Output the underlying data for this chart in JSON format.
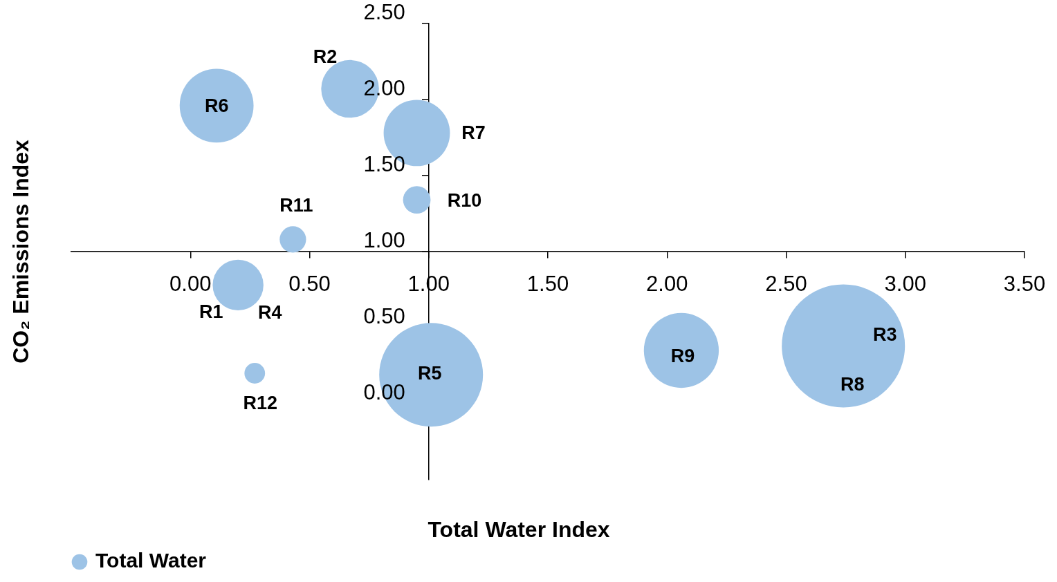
{
  "chart_data": {
    "type": "bubble",
    "xlabel": "Total Water Index",
    "ylabel": "CO₂ Emissions Index",
    "x": [
      0.11,
      0.67,
      0.95,
      0.95,
      0.43,
      0.2,
      0.27,
      1.01,
      2.06,
      2.74
    ],
    "series": [
      {
        "name": "Total Water",
        "color": "#9dc3e6",
        "values": [
          1.96,
          2.07,
          1.78,
          1.34,
          1.08,
          0.78,
          0.2,
          0.19,
          0.35,
          0.38
        ],
        "sizes": [
          0.36,
          0.22,
          0.29,
          0.05,
          0.046,
          0.17,
          0.028,
          0.71,
          0.37,
          1
        ]
      }
    ],
    "xlim": [
      -0.5,
      3.5
    ],
    "ylim": [
      -0.5,
      2.5
    ],
    "xticks": [
      {
        "value": 0,
        "label": "0.00"
      },
      {
        "value": 0.5,
        "label": "0.50"
      },
      {
        "value": 1,
        "label": "1.00"
      },
      {
        "value": 1.5,
        "label": "1.50"
      },
      {
        "value": 2,
        "label": "2.00"
      },
      {
        "value": 2.5,
        "label": "2.50"
      },
      {
        "value": 3,
        "label": "3.00"
      },
      {
        "value": 3.5,
        "label": "3.50"
      }
    ],
    "yticks": [
      {
        "value": 0,
        "label": "0.00"
      },
      {
        "value": 0.5,
        "label": "0.50"
      },
      {
        "value": 1,
        "label": "1.00"
      },
      {
        "value": 1.5,
        "label": "1.50"
      },
      {
        "value": 2,
        "label": "2.00"
      },
      {
        "value": 2.5,
        "label": "2.50"
      }
    ],
    "annotations": [
      {
        "text": "R6",
        "x": 0.11,
        "y": 1.96
      },
      {
        "text": "R2",
        "x": 0.67,
        "y": 2.07
      },
      {
        "text": "R7",
        "x": 0.95,
        "y": 1.78
      },
      {
        "text": "R10",
        "x": 0.95,
        "y": 1.34
      },
      {
        "text": "R11",
        "x": 0.43,
        "y": 1.08
      },
      {
        "text": "R1",
        "x": 0.2,
        "y": 0.78
      },
      {
        "text": "R4",
        "x": 0.2,
        "y": 0.78
      },
      {
        "text": "R12",
        "x": 0.27,
        "y": 0.2
      },
      {
        "text": "R5",
        "x": 1.01,
        "y": 0.19
      },
      {
        "text": "R9",
        "x": 2.06,
        "y": 0.35
      },
      {
        "text": "R3",
        "x": 2.74,
        "y": 0.38
      },
      {
        "text": "R8",
        "x": 2.74,
        "y": 0.38
      }
    ],
    "legend": "bottom left",
    "grid": false
  }
}
